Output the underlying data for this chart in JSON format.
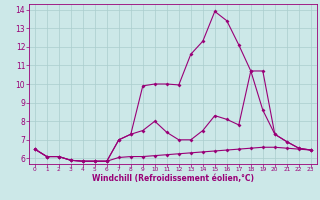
{
  "xlabel": "Windchill (Refroidissement éolien,°C)",
  "bg_color": "#cce8e8",
  "grid_color": "#aacece",
  "line_color": "#990077",
  "xlim": [
    -0.5,
    23.5
  ],
  "ylim": [
    5.7,
    14.3
  ],
  "xticks": [
    0,
    1,
    2,
    3,
    4,
    5,
    6,
    7,
    8,
    9,
    10,
    11,
    12,
    13,
    14,
    15,
    16,
    17,
    18,
    19,
    20,
    21,
    22,
    23
  ],
  "yticks": [
    6,
    7,
    8,
    9,
    10,
    11,
    12,
    13,
    14
  ],
  "series1_x": [
    0,
    1,
    2,
    3,
    4,
    5,
    6,
    7,
    8,
    9,
    10,
    11,
    12,
    13,
    14,
    15,
    16,
    17,
    18,
    19,
    20,
    21,
    22,
    23
  ],
  "series1_y": [
    6.5,
    6.1,
    6.1,
    5.9,
    5.85,
    5.85,
    5.85,
    6.05,
    6.1,
    6.1,
    6.15,
    6.2,
    6.25,
    6.3,
    6.35,
    6.4,
    6.45,
    6.5,
    6.55,
    6.6,
    6.6,
    6.55,
    6.5,
    6.45
  ],
  "series2_x": [
    0,
    1,
    2,
    3,
    4,
    5,
    6,
    7,
    8,
    9,
    10,
    11,
    12,
    13,
    14,
    15,
    16,
    17,
    18,
    19,
    20,
    21,
    22,
    23
  ],
  "series2_y": [
    6.5,
    6.1,
    6.1,
    5.9,
    5.85,
    5.85,
    5.85,
    7.0,
    7.3,
    7.5,
    8.0,
    7.4,
    7.0,
    7.0,
    7.5,
    8.3,
    8.1,
    7.8,
    10.7,
    8.6,
    7.3,
    6.9,
    6.55,
    6.45
  ],
  "series3_x": [
    0,
    1,
    2,
    3,
    4,
    5,
    6,
    7,
    8,
    9,
    10,
    11,
    12,
    13,
    14,
    15,
    16,
    17,
    18,
    19,
    20,
    21,
    22,
    23
  ],
  "series3_y": [
    6.5,
    6.1,
    6.1,
    5.9,
    5.85,
    5.85,
    5.85,
    7.0,
    7.3,
    9.9,
    10.0,
    10.0,
    9.95,
    11.6,
    12.3,
    13.9,
    13.4,
    12.1,
    10.7,
    10.7,
    7.3,
    6.9,
    6.55,
    6.45
  ],
  "marker": "D",
  "markersize": 2.0,
  "linewidth": 0.8,
  "tick_fontsize": 5.0,
  "xlabel_fontsize": 5.5
}
